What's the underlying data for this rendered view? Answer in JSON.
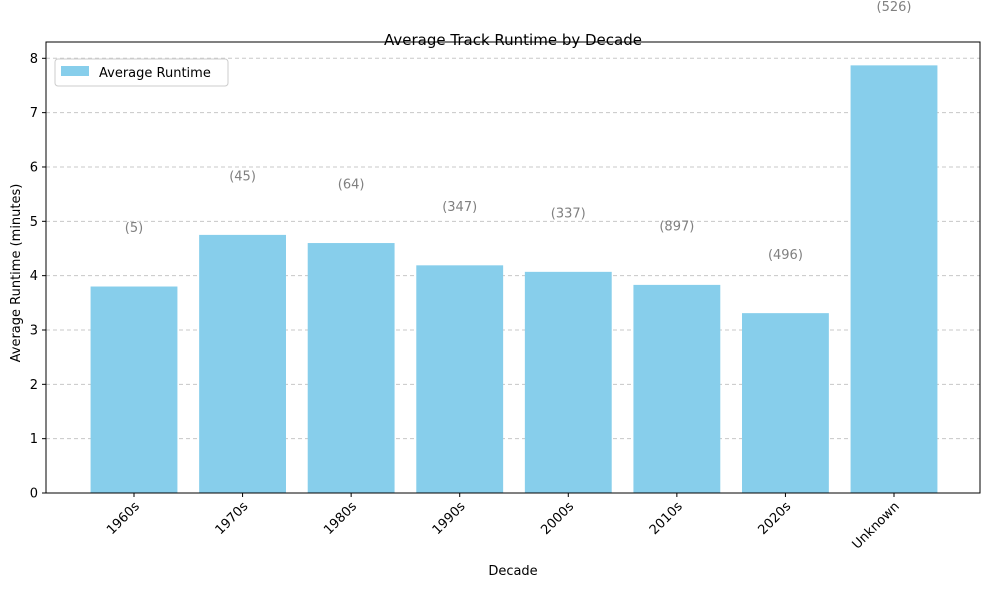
{
  "chart_data": {
    "type": "bar",
    "title": "Average Track Runtime by Decade",
    "xlabel": "Decade",
    "ylabel": "Average Runtime (minutes)",
    "categories": [
      "1960s",
      "1970s",
      "1980s",
      "1990s",
      "2000s",
      "2010s",
      "2020s",
      "Unknown"
    ],
    "series": [
      {
        "name": "Average Runtime",
        "values": [
          3.8,
          4.75,
          4.6,
          4.19,
          4.07,
          3.83,
          3.31,
          7.87
        ]
      }
    ],
    "annotations": [
      "(5)",
      "(45)",
      "(64)",
      "(347)",
      "(337)",
      "(897)",
      "(496)",
      "(526)"
    ],
    "ylim": [
      0,
      8.3
    ],
    "yticks": [
      0,
      1,
      2,
      3,
      4,
      5,
      6,
      7,
      8
    ],
    "grid": "y-dashed",
    "legend_position": "top-left",
    "colors": {
      "bar": "#87CEEB",
      "annotation": "#808080",
      "grid": "#c8c8c8",
      "axis": "#000000"
    }
  }
}
